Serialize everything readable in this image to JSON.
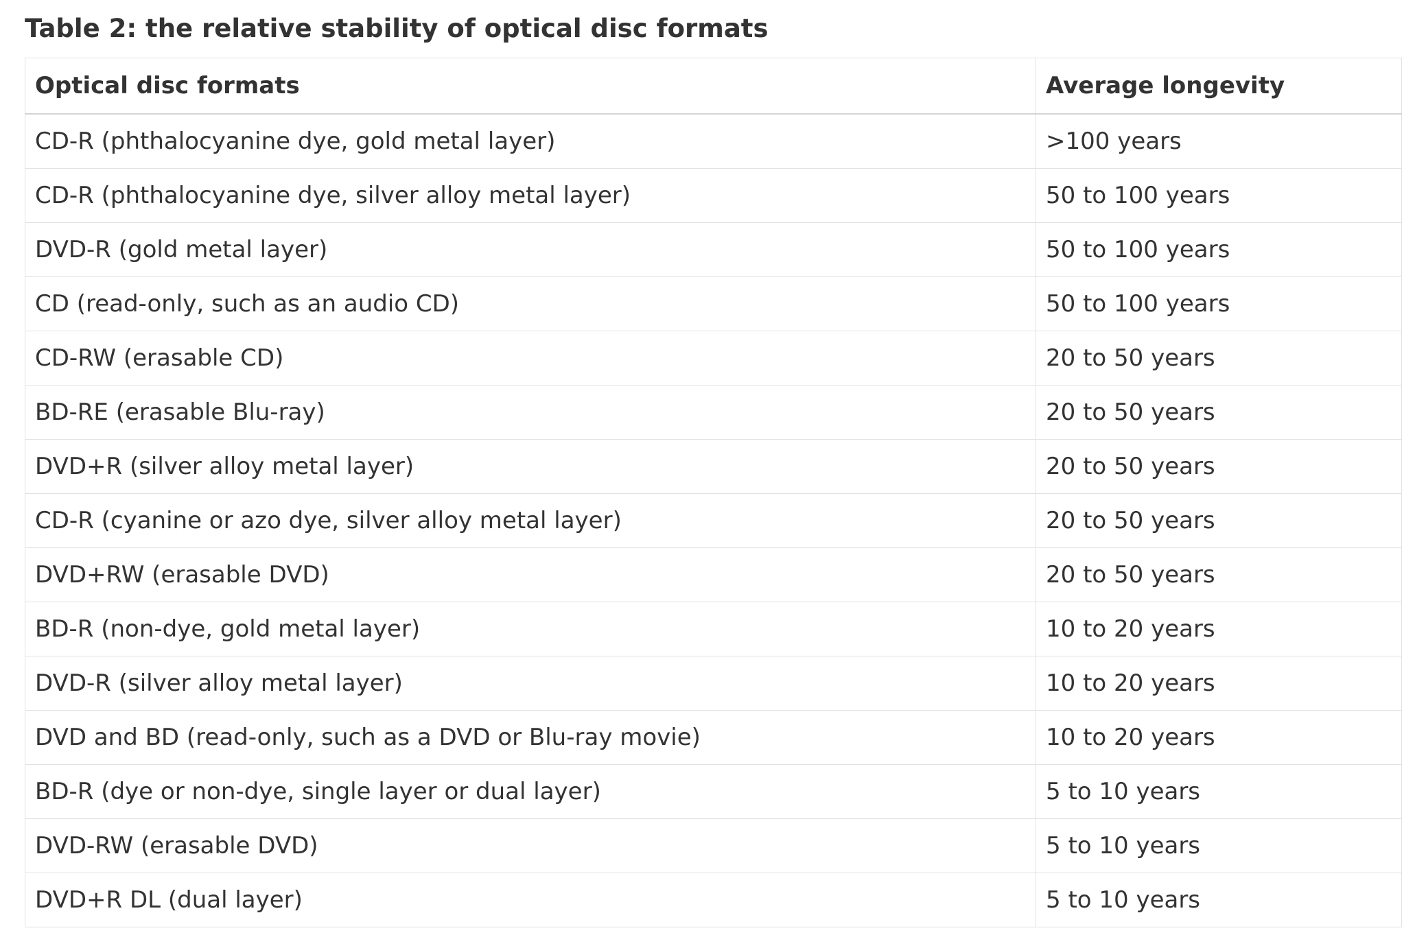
{
  "table": {
    "caption": "Table 2: the relative stability of optical disc formats",
    "headers": [
      "Optical disc formats",
      "Average longevity"
    ],
    "rows": [
      [
        "CD-R (phthalocyanine dye, gold metal layer)",
        ">100 years"
      ],
      [
        "CD-R (phthalocyanine dye, silver alloy metal layer)",
        "50 to 100 years"
      ],
      [
        "DVD-R (gold metal layer)",
        "50 to 100 years"
      ],
      [
        "CD (read-only, such as an audio CD)",
        "50 to 100 years"
      ],
      [
        "CD-RW (erasable CD)",
        "20 to 50 years"
      ],
      [
        "BD-RE (erasable Blu-ray)",
        "20 to 50 years"
      ],
      [
        "DVD+R (silver alloy metal layer)",
        "20 to 50 years"
      ],
      [
        "CD-R (cyanine or azo dye, silver alloy metal layer)",
        "20 to 50 years"
      ],
      [
        "DVD+RW (erasable DVD)",
        "20 to 50 years"
      ],
      [
        "BD-R (non-dye, gold metal layer)",
        "10 to 20 years"
      ],
      [
        "DVD-R (silver alloy metal layer)",
        "10 to 20 years"
      ],
      [
        "DVD and BD (read-only, such as a DVD or Blu-ray movie)",
        "10 to 20 years"
      ],
      [
        "BD-R (dye or non-dye, single layer or dual layer)",
        "5 to 10 years"
      ],
      [
        "DVD-RW (erasable DVD)",
        "5 to 10 years"
      ],
      [
        "DVD+R DL (dual layer)",
        "5 to 10 years"
      ]
    ]
  }
}
